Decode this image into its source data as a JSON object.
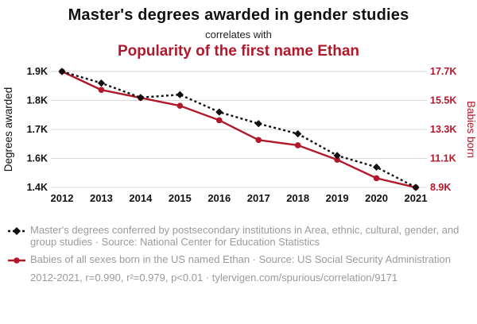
{
  "page": {
    "title": "Master's degrees awarded in gender studies",
    "connector": "correlates with",
    "subtitle": "Popularity of the first name Ethan"
  },
  "colors": {
    "series_black": "#111111",
    "series_red": "#b2182b",
    "muted_text": "#9a9a9c",
    "gridline": "#d9d9d9"
  },
  "chart_data": {
    "type": "line",
    "x": [
      2012,
      2013,
      2014,
      2015,
      2016,
      2017,
      2018,
      2019,
      2020,
      2021
    ],
    "series": [
      {
        "name": "Master's degrees conferred by postsecondary institutions in Area, ethnic, cultural, gender, and group studies",
        "axis": "left",
        "color": "#111111",
        "style": "dashed-line-diamond-markers",
        "values": [
          1900,
          1860,
          1810,
          1820,
          1760,
          1720,
          1685,
          1610,
          1540,
          1400
        ]
      },
      {
        "name": "Babies of all sexes born in the US named Ethan",
        "axis": "right",
        "color": "#b2182b",
        "style": "solid-line-circle-markers",
        "values": [
          17700,
          16300,
          15700,
          15100,
          14000,
          12500,
          12100,
          11000,
          9600,
          8900
        ]
      }
    ],
    "left_axis": {
      "label": "Degrees awarded",
      "tick_labels": [
        "1.9K",
        "1.8K",
        "1.7K",
        "1.6K",
        "1.4K"
      ],
      "tick_values": [
        1900,
        1800,
        1700,
        1600,
        1400
      ]
    },
    "right_axis": {
      "label": "Babies born",
      "tick_labels": [
        "17.7K",
        "15.5K",
        "13.3K",
        "11.1K",
        "8.9K"
      ],
      "tick_values": [
        17700,
        15500,
        13300,
        11100,
        8900
      ]
    },
    "grid": true,
    "legend_position": "bottom"
  },
  "legend": [
    {
      "series": "masters-degrees",
      "text": "Master's degrees conferred by postsecondary institutions in Area, ethnic, cultural, gender, and group studies · Source: National Center for Education Statistics"
    },
    {
      "series": "ethan-babies",
      "text": "Babies of all sexes born in the US named Ethan · Source: US Social Security Administration"
    }
  ],
  "footer": "2012-2021, r=0.990, r²=0.979, p<0.01 · tylervigen.com/spurious/correlation/9171"
}
